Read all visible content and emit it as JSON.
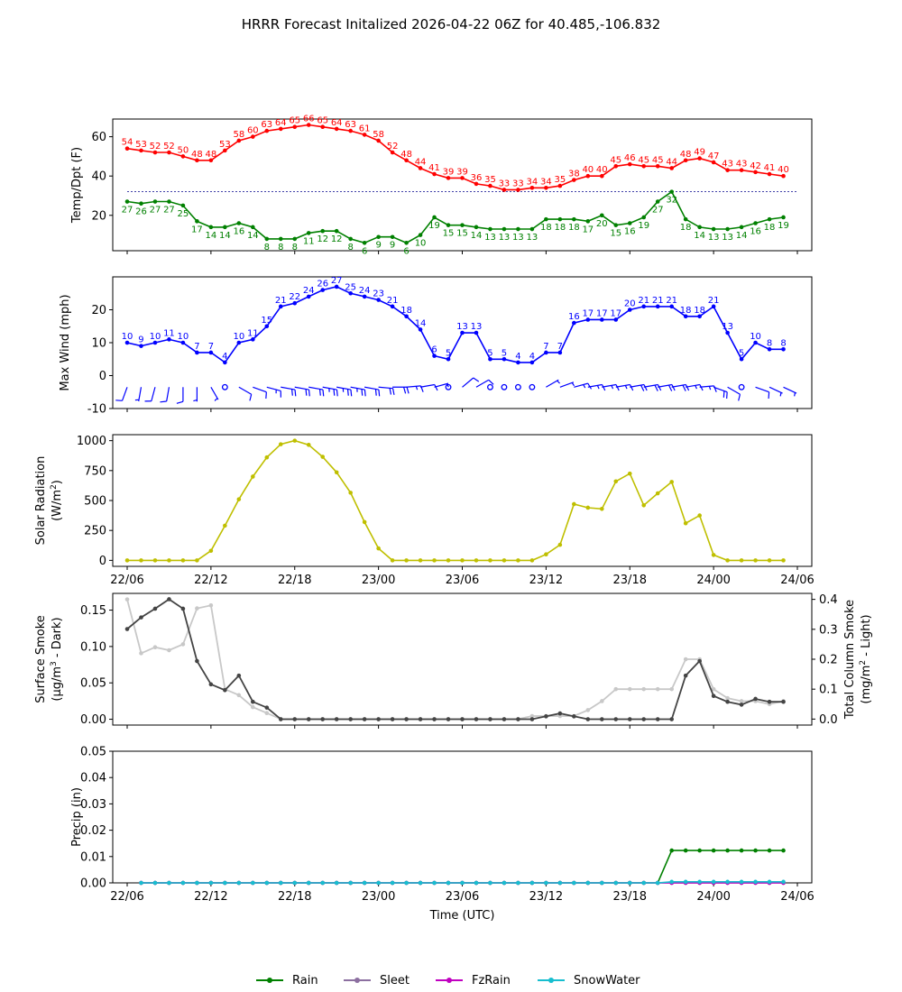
{
  "title": "HRRR Forecast Initalized 2026-04-22 06Z for 40.485,-106.832",
  "colors": {
    "temp": "#ff0000",
    "dewpoint": "#008000",
    "wind": "#0000ff",
    "solar": "#bfbf00",
    "smoke_dark": "#444444",
    "smoke_light": "#c8c8c8",
    "rain": "#008000",
    "sleet": "#8c6fa0",
    "fzrain": "#c000c0",
    "snow": "#17becf",
    "freezing_line": "#00008b"
  },
  "chart_data": [
    {
      "id": "temp",
      "type": "line",
      "ylabel": "Temp/Dpt (F)",
      "ylim": [
        2,
        69
      ],
      "yticks": [
        20,
        40,
        60
      ],
      "x_range": [
        0,
        48
      ],
      "reference_line": 32,
      "series": [
        {
          "name": "Temperature",
          "color_key": "temp",
          "values": [
            54,
            53,
            52,
            52,
            50,
            48,
            48,
            53,
            58,
            60,
            63,
            64,
            65,
            66,
            65,
            64,
            63,
            61,
            58,
            52,
            48,
            44,
            41,
            39,
            39,
            36,
            35,
            33,
            33,
            34,
            34,
            35,
            38,
            40,
            40,
            45,
            46,
            45,
            45,
            44,
            48,
            49,
            47,
            43,
            43,
            42,
            41,
            40
          ]
        },
        {
          "name": "Dewpoint",
          "color_key": "dewpoint",
          "values": [
            27,
            26,
            27,
            27,
            25,
            17,
            14,
            14,
            16,
            14,
            8,
            8,
            8,
            11,
            12,
            12,
            8,
            6,
            9,
            9,
            6,
            10,
            19,
            15,
            15,
            14,
            13,
            13,
            13,
            13,
            18,
            18,
            18,
            17,
            20,
            15,
            16,
            19,
            27,
            32,
            18,
            14,
            13,
            13,
            14,
            16,
            18,
            19
          ]
        }
      ]
    },
    {
      "id": "wind",
      "type": "line",
      "ylabel": "Max Wind (mph)",
      "ylim": [
        -10,
        30
      ],
      "yticks": [
        -10,
        0,
        10,
        20
      ],
      "x_range": [
        0,
        48
      ],
      "series": [
        {
          "name": "Max Wind",
          "color_key": "wind",
          "values": [
            10,
            9,
            10,
            11,
            10,
            7,
            7,
            4,
            10,
            11,
            15,
            21,
            22,
            24,
            26,
            27,
            25,
            24,
            23,
            21,
            18,
            14,
            6,
            5,
            13,
            13,
            5,
            5,
            4,
            4,
            7,
            7,
            16,
            17,
            17,
            17,
            20,
            21,
            21,
            21,
            18,
            18,
            21,
            13,
            5,
            10,
            8,
            8
          ]
        }
      ],
      "wind_barb_dirs": [
        200,
        190,
        195,
        190,
        180,
        180,
        150,
        135,
        120,
        110,
        105,
        100,
        100,
        100,
        100,
        100,
        100,
        100,
        95,
        90,
        85,
        80,
        75,
        0,
        50,
        60,
        45,
        30,
        0,
        60,
        60,
        70,
        75,
        80,
        80,
        80,
        80,
        80,
        80,
        80,
        80,
        85,
        110,
        120,
        110,
        110,
        115,
        115
      ]
    },
    {
      "id": "solar",
      "type": "line",
      "ylabel": "Solar Radiation",
      "ylabel_sub": "(W/m",
      "ylabel_sub_sup": "2",
      "ylabel_sub_end": ")",
      "ylim": [
        -50,
        1050
      ],
      "yticks": [
        0,
        250,
        500,
        750,
        1000
      ],
      "x_range": [
        0,
        48
      ],
      "series": [
        {
          "name": "Solar Radiation",
          "color_key": "solar",
          "values": [
            0,
            0,
            0,
            0,
            0,
            0,
            80,
            290,
            510,
            700,
            860,
            970,
            1000,
            965,
            865,
            735,
            565,
            320,
            100,
            0,
            0,
            0,
            0,
            0,
            0,
            0,
            0,
            0,
            0,
            0,
            50,
            130,
            470,
            440,
            430,
            660,
            725,
            460,
            560,
            655,
            310,
            375,
            45,
            0,
            0,
            0,
            0,
            0
          ]
        }
      ]
    },
    {
      "id": "smoke",
      "type": "line",
      "ylabel": "Surface Smoke",
      "ylabel_sub": "(μg/m",
      "ylabel_sub_sup": "3",
      "ylabel_sub_end": " - Dark)",
      "ylim": [
        -0.008,
        0.173
      ],
      "yticks": [
        0.0,
        0.05,
        0.1,
        0.15
      ],
      "y2label": "Total Column Smoke",
      "y2label_sub": "(mg/m",
      "y2label_sub_sup": "2",
      "y2label_sub_end": " - Light)",
      "y2lim": [
        -0.02,
        0.42
      ],
      "y2ticks": [
        0.0,
        0.1,
        0.2,
        0.3,
        0.4
      ],
      "x_range": [
        0,
        48
      ],
      "series": [
        {
          "name": "Surface Smoke",
          "color_key": "smoke_dark",
          "axis": "left",
          "values": [
            0.124,
            0.14,
            0.152,
            0.165,
            0.152,
            0.08,
            0.048,
            0.04,
            0.06,
            0.024,
            0.016,
            0,
            0,
            0,
            0,
            0,
            0,
            0,
            0,
            0,
            0,
            0,
            0,
            0,
            0,
            0,
            0,
            0,
            0,
            0,
            0.004,
            0.008,
            0.004,
            0,
            0,
            0,
            0,
            0,
            0,
            0,
            0.06,
            0.08,
            0.032,
            0.024,
            0.02,
            0.028,
            0.024,
            0.024
          ]
        },
        {
          "name": "Total Column Smoke",
          "color_key": "smoke_light",
          "axis": "right",
          "values": [
            0.4,
            0.22,
            0.24,
            0.23,
            0.25,
            0.37,
            0.38,
            0.1,
            0.08,
            0.04,
            0.02,
            0,
            0,
            0,
            0,
            0,
            0,
            0,
            0,
            0,
            0,
            0,
            0,
            0,
            0,
            0,
            0,
            0,
            0,
            0.01,
            0.01,
            0.01,
            0.01,
            0.03,
            0.06,
            0.1,
            0.1,
            0.1,
            0.1,
            0.1,
            0.2,
            0.2,
            0.1,
            0.07,
            0.06,
            0.06,
            0.05,
            0.06
          ]
        }
      ]
    },
    {
      "id": "precip",
      "type": "line",
      "ylabel": "Precip (in)",
      "ylim": [
        0,
        0.05
      ],
      "yticks": [
        0.0,
        0.01,
        0.02,
        0.03,
        0.04,
        0.05
      ],
      "x_range": [
        0,
        48
      ],
      "xlabel": "Time (UTC)",
      "series": [
        {
          "name": "Rain",
          "color_key": "rain",
          "values": [
            null,
            0,
            0,
            0,
            0,
            0,
            0,
            0,
            0,
            0,
            0,
            0,
            0,
            0,
            0,
            0,
            0,
            0,
            0,
            0,
            0,
            0,
            0,
            0,
            0,
            0,
            0,
            0,
            0,
            0,
            0,
            0,
            0,
            0,
            0,
            0,
            0,
            0,
            0,
            0.0123,
            0.0123,
            0.0123,
            0.0123,
            0.0123,
            0.0123,
            0.0123,
            0.0123,
            0.0123
          ]
        },
        {
          "name": "Sleet",
          "color_key": "sleet",
          "values": [
            null,
            0,
            0,
            0,
            0,
            0,
            0,
            0,
            0,
            0,
            0,
            0,
            0,
            0,
            0,
            0,
            0,
            0,
            0,
            0,
            0,
            0,
            0,
            0,
            0,
            0,
            0,
            0,
            0,
            0,
            0,
            0,
            0,
            0,
            0,
            0,
            0,
            0,
            0,
            0,
            0,
            0,
            0,
            0,
            0,
            0,
            0,
            0
          ]
        },
        {
          "name": "FzRain",
          "color_key": "fzrain",
          "values": [
            null,
            0,
            0,
            0,
            0,
            0,
            0,
            0,
            0,
            0,
            0,
            0,
            0,
            0,
            0,
            0,
            0,
            0,
            0,
            0,
            0,
            0,
            0,
            0,
            0,
            0,
            0,
            0,
            0,
            0,
            0,
            0,
            0,
            0,
            0,
            0,
            0,
            0,
            0,
            0,
            0,
            0,
            0,
            0,
            0,
            0,
            0,
            0
          ]
        },
        {
          "name": "SnowWater",
          "color_key": "snow",
          "values": [
            null,
            0,
            0,
            0,
            0,
            0,
            0,
            0,
            0,
            0,
            0,
            0,
            0,
            0,
            0,
            0,
            0,
            0,
            0,
            0,
            0,
            0,
            0,
            0,
            0,
            0,
            0,
            0,
            0,
            0,
            0,
            0,
            0,
            0,
            0,
            0,
            0,
            0,
            0,
            0.0004,
            0.0004,
            0.0004,
            0.0004,
            0.0004,
            0.0004,
            0.0004,
            0.0004,
            0.0004
          ]
        }
      ]
    }
  ],
  "x_ticks": {
    "positions": [
      0,
      6,
      12,
      18,
      24,
      30,
      36,
      42,
      48
    ],
    "labels": [
      "22/06",
      "22/12",
      "22/18",
      "23/00",
      "23/06",
      "23/12",
      "23/18",
      "24/00",
      "24/06"
    ]
  },
  "legend": [
    {
      "label": "Rain",
      "color_key": "rain"
    },
    {
      "label": "Sleet",
      "color_key": "sleet"
    },
    {
      "label": "FzRain",
      "color_key": "fzrain"
    },
    {
      "label": "SnowWater",
      "color_key": "snow"
    }
  ]
}
